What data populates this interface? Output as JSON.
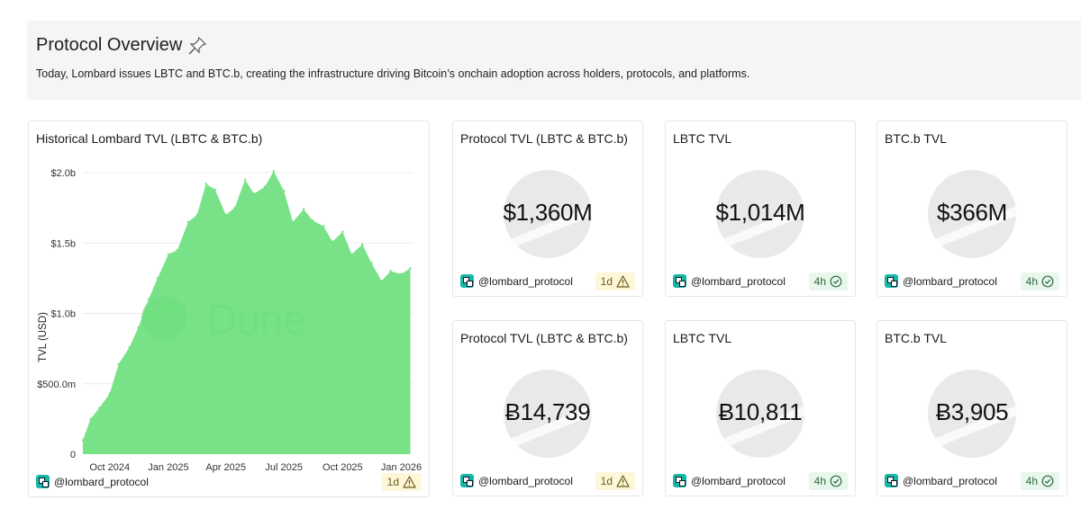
{
  "overview": {
    "title": "Protocol Overview",
    "title_icon": "pushpin-icon",
    "description": "Today, Lombard issues LBTC and BTC.b, creating the infrastructure driving Bitcoin’s onchain adoption across holders, protocols, and platforms."
  },
  "chart_card": {
    "title": "Historical Lombard TVL (LBTC & BTC.b)",
    "author": "@lombard_protocol",
    "freshness": "1d",
    "freshness_icon": "warning-icon",
    "watermark": "Dune"
  },
  "chart_data": {
    "type": "area",
    "title": "Historical Lombard TVL (LBTC & BTC.b)",
    "ylabel": "TVL (USD)",
    "xlabel": "",
    "ylim": [
      0,
      2000000000
    ],
    "yticks": [
      {
        "value": 0,
        "label": "0"
      },
      {
        "value": 500000000,
        "label": "$500.0m"
      },
      {
        "value": 1000000000,
        "label": "$1.0b"
      },
      {
        "value": 1500000000,
        "label": "$1.5b"
      },
      {
        "value": 2000000000,
        "label": "$2.0b"
      }
    ],
    "xlim": [
      "2024-08-20",
      "2026-01-20"
    ],
    "xticks": [
      {
        "value": "2024-10-01",
        "label": "Oct 2024"
      },
      {
        "value": "2025-01-01",
        "label": "Jan 2025"
      },
      {
        "value": "2025-04-01",
        "label": "Apr 2025"
      },
      {
        "value": "2025-07-01",
        "label": "Jul 2025"
      },
      {
        "value": "2025-10-01",
        "label": "Oct 2025"
      },
      {
        "value": "2026-01-01",
        "label": "Jan 2026"
      }
    ],
    "grid": true,
    "color": "#6ee07e",
    "series": [
      {
        "x": [
          "2024-08-20",
          "2024-09-01",
          "2024-09-15",
          "2024-10-01",
          "2024-10-15",
          "2024-11-01",
          "2024-11-15",
          "2024-12-01",
          "2024-12-15",
          "2025-01-01",
          "2025-01-15",
          "2025-02-01",
          "2025-02-15",
          "2025-03-01",
          "2025-03-15",
          "2025-04-01",
          "2025-04-15",
          "2025-05-01",
          "2025-05-15",
          "2025-06-01",
          "2025-06-15",
          "2025-07-01",
          "2025-07-15",
          "2025-08-01",
          "2025-08-15",
          "2025-09-01",
          "2025-09-15",
          "2025-10-01",
          "2025-10-15",
          "2025-11-01",
          "2025-11-15",
          "2025-12-01",
          "2025-12-15",
          "2026-01-01",
          "2026-01-15"
        ],
        "values": [
          100000000,
          250000000,
          330000000,
          430000000,
          640000000,
          760000000,
          900000000,
          1100000000,
          1250000000,
          1420000000,
          1450000000,
          1650000000,
          1700000000,
          1920000000,
          1880000000,
          1700000000,
          1750000000,
          1950000000,
          1850000000,
          1900000000,
          2010000000,
          1870000000,
          1650000000,
          1740000000,
          1660000000,
          1620000000,
          1510000000,
          1580000000,
          1420000000,
          1490000000,
          1360000000,
          1230000000,
          1300000000,
          1280000000,
          1320000000
        ]
      }
    ]
  },
  "counters": [
    {
      "title": "Protocol TVL (LBTC & BTC.b)",
      "value": "$1,360M",
      "author": "@lombard_protocol",
      "freshness": "1d",
      "status": "warn",
      "status_icon": "warning-icon"
    },
    {
      "title": "LBTC TVL",
      "value": "$1,014M",
      "author": "@lombard_protocol",
      "freshness": "4h",
      "status": "ok",
      "status_icon": "check-circle-icon"
    },
    {
      "title": "BTC.b TVL",
      "value": "$366M",
      "author": "@lombard_protocol",
      "freshness": "4h",
      "status": "ok",
      "status_icon": "check-circle-icon"
    },
    {
      "title": "Protocol TVL (LBTC & BTC.b)",
      "value": "Ƀ14,739",
      "author": "@lombard_protocol",
      "freshness": "1d",
      "status": "warn",
      "status_icon": "warning-icon"
    },
    {
      "title": "LBTC TVL",
      "value": "Ƀ10,811",
      "author": "@lombard_protocol",
      "freshness": "4h",
      "status": "ok",
      "status_icon": "check-circle-icon"
    },
    {
      "title": "BTC.b TVL",
      "value": "Ƀ3,905",
      "author": "@lombard_protocol",
      "freshness": "4h",
      "status": "ok",
      "status_icon": "check-circle-icon"
    }
  ]
}
